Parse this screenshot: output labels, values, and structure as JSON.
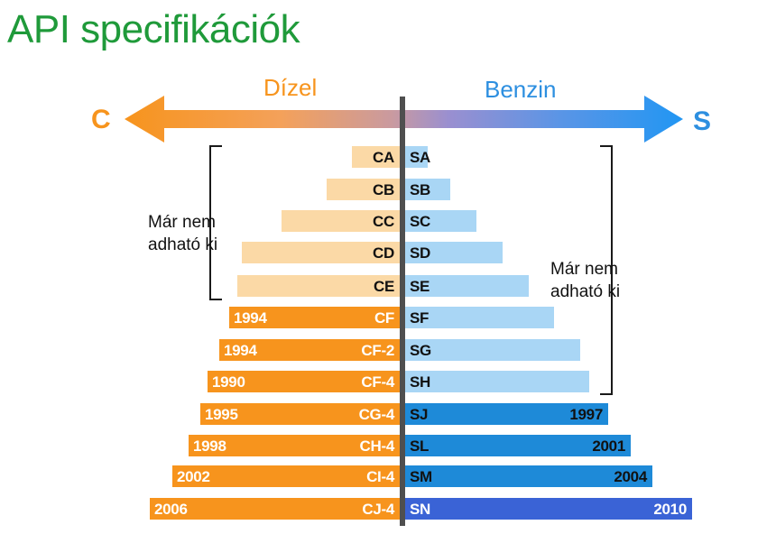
{
  "title": "API specifikációk",
  "diesel_label": "Dízel",
  "petrol_label": "Benzin",
  "left_letter": "C",
  "right_letter": "S",
  "note_left": [
    "Már nem",
    "adható ki"
  ],
  "note_right": [
    "Már nem",
    "adható ki"
  ],
  "colors": {
    "title": "#1f9a3a",
    "diesel": "#f7941d",
    "diesel_obsolete": "#fbd9a6",
    "petrol_obsolete": "#a9d6f5",
    "petrol_current": "#1e8ad8",
    "petrol_latest": "#3a63d6"
  },
  "rows": [
    {
      "diesel": "CA",
      "diesel_year": "",
      "petrol": "SA",
      "petrol_year": "",
      "diesel_status": "obsolete",
      "petrol_status": "obsolete"
    },
    {
      "diesel": "CB",
      "diesel_year": "",
      "petrol": "SB",
      "petrol_year": "",
      "diesel_status": "obsolete",
      "petrol_status": "obsolete"
    },
    {
      "diesel": "CC",
      "diesel_year": "",
      "petrol": "SC",
      "petrol_year": "",
      "diesel_status": "obsolete",
      "petrol_status": "obsolete"
    },
    {
      "diesel": "CD",
      "diesel_year": "",
      "petrol": "SD",
      "petrol_year": "",
      "diesel_status": "obsolete",
      "petrol_status": "obsolete"
    },
    {
      "diesel": "CE",
      "diesel_year": "",
      "petrol": "SE",
      "petrol_year": "",
      "diesel_status": "obsolete",
      "petrol_status": "obsolete"
    },
    {
      "diesel": "CF",
      "diesel_year": "1994",
      "petrol": "SF",
      "petrol_year": "",
      "diesel_status": "current",
      "petrol_status": "obsolete"
    },
    {
      "diesel": "CF-2",
      "diesel_year": "1994",
      "petrol": "SG",
      "petrol_year": "",
      "diesel_status": "current",
      "petrol_status": "obsolete"
    },
    {
      "diesel": "CF-4",
      "diesel_year": "1990",
      "petrol": "SH",
      "petrol_year": "",
      "diesel_status": "current",
      "petrol_status": "obsolete"
    },
    {
      "diesel": "CG-4",
      "diesel_year": "1995",
      "petrol": "SJ",
      "petrol_year": "1997",
      "diesel_status": "current",
      "petrol_status": "current"
    },
    {
      "diesel": "CH-4",
      "diesel_year": "1998",
      "petrol": "SL",
      "petrol_year": "2001",
      "diesel_status": "current",
      "petrol_status": "current"
    },
    {
      "diesel": "CI-4",
      "diesel_year": "2002",
      "petrol": "SM",
      "petrol_year": "2004",
      "diesel_status": "current",
      "petrol_status": "current"
    },
    {
      "diesel": "CJ-4",
      "diesel_year": "2006",
      "petrol": "SN",
      "petrol_year": "2010",
      "diesel_status": "current",
      "petrol_status": "latest"
    }
  ]
}
